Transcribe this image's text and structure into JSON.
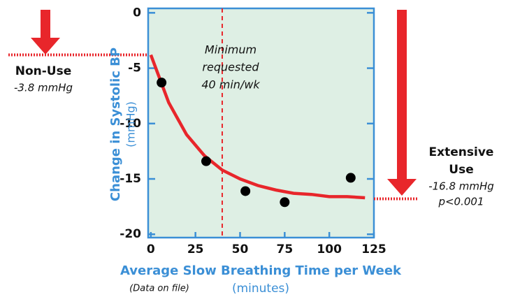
{
  "chart_data": {
    "type": "scatter",
    "x": [
      6,
      31,
      53,
      75,
      112
    ],
    "values": [
      -6.3,
      -13.4,
      -16.1,
      -17.1,
      -14.9
    ],
    "color": "#000000",
    "fit": {
      "color": "#e8262b",
      "x": [
        0,
        10,
        20,
        30,
        40,
        50,
        60,
        70,
        80,
        90,
        100,
        110,
        120
      ],
      "values": [
        -3.8,
        -8.1,
        -11.0,
        -12.9,
        -14.2,
        -15.0,
        -15.6,
        -16.0,
        -16.3,
        -16.4,
        -16.6,
        -16.6,
        -16.7
      ]
    },
    "xlim": [
      -1.5,
      125
    ],
    "ylim": [
      -20.3,
      0.4
    ],
    "xticks": [
      0,
      25,
      50,
      75,
      100,
      125
    ],
    "yticks": [
      0,
      -5,
      -10,
      -15,
      -20
    ],
    "x_label": "Average Slow Breathing Time per Week",
    "x_unit": "(minutes)",
    "y_label": "Change in Systolic BP",
    "y_unit": "(mmHg)",
    "note": "(Data on file)",
    "threshold": {
      "value": 40,
      "lines": [
        "Minimum",
        "requested",
        "40 min/wk"
      ]
    },
    "levels": [
      {
        "name": [
          "Non-Use"
        ],
        "value": -3.8,
        "label": "-3.8 mmHg"
      },
      {
        "name": [
          "Extensive",
          "Use"
        ],
        "value": -16.8,
        "label": "-16.8 mmHg",
        "note": "p<0.001"
      }
    ]
  }
}
